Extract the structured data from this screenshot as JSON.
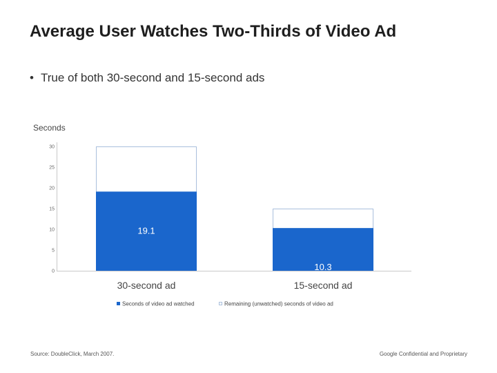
{
  "slide": {
    "title": "Average User Watches Two-Thirds of Video Ad",
    "bullet": "True of both 30-second and 15-second ads",
    "source": "Source: DoubleClick, March 2007.",
    "confidentiality": "Google Confidential and Proprietary"
  },
  "colors": {
    "watched": "#1a66cc",
    "remaining": "#ffffff",
    "remaining_border": "#a9bfdc",
    "axis": "#c8c8c8",
    "tick_text": "#666666",
    "data_label": "#ffffff"
  },
  "chart_data": {
    "type": "bar",
    "stacked": true,
    "title": "",
    "ylabel": "Seconds",
    "xlabel": "",
    "categories": [
      "30-second ad",
      "15-second ad"
    ],
    "ylim": [
      0,
      30
    ],
    "yticks": [
      0,
      5,
      10,
      15,
      20,
      25,
      30
    ],
    "series": [
      {
        "name": "Seconds of video ad watched",
        "values": [
          19.1,
          10.3
        ],
        "labels": [
          "19.1",
          "10.3"
        ]
      },
      {
        "name": "Remaining (unwatched) seconds of video ad",
        "values": [
          10.9,
          4.7
        ]
      }
    ],
    "legend_position": "bottom",
    "grid": false
  }
}
